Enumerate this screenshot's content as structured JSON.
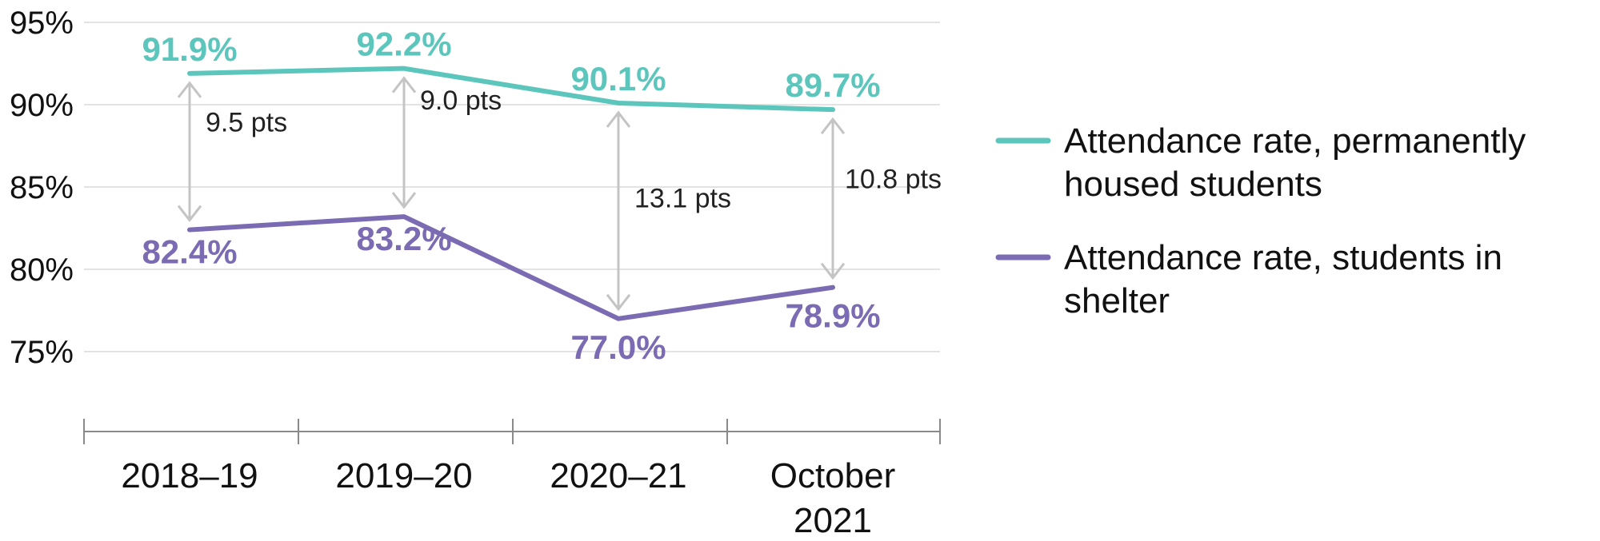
{
  "chart_data": {
    "type": "line",
    "categories": [
      "2018–19",
      "2019–20",
      "2020–21",
      "October\n2021"
    ],
    "ylim": [
      75,
      95
    ],
    "yticks": [
      "95%",
      "90%",
      "85%",
      "80%",
      "75%"
    ],
    "grid": true,
    "legend_position": "right",
    "series": [
      {
        "name": "Attendance rate, permanently housed students",
        "color": "#5cc6bd",
        "values": [
          91.9,
          92.2,
          90.1,
          89.7
        ],
        "labels": [
          "91.9%",
          "92.2%",
          "90.1%",
          "89.7%"
        ]
      },
      {
        "name": "Attendance rate, students in shelter",
        "color": "#7b6bb3",
        "values": [
          82.4,
          83.2,
          77.0,
          78.9
        ],
        "labels": [
          "82.4%",
          "83.2%",
          "77.0%",
          "78.9%"
        ]
      }
    ],
    "gaps": [
      "9.5 pts",
      "9.0 pts",
      "13.1 pts",
      "10.8 pts"
    ],
    "gap_color": "#c4c4c4",
    "legend": [
      "Attendance rate, permanently housed students",
      "Attendance rate, students in shelter"
    ]
  }
}
